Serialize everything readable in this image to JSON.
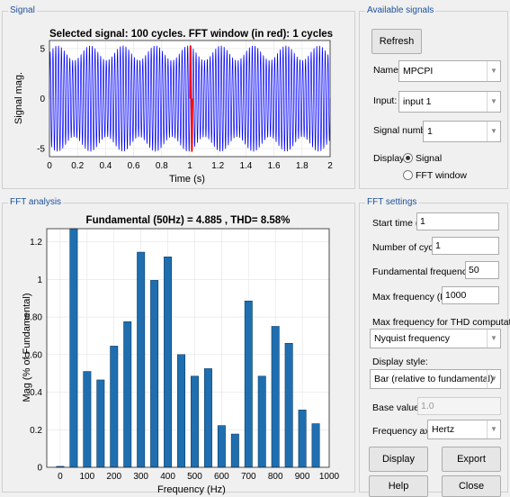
{
  "signal_panel": {
    "title": "Signal",
    "plot_title": "Selected signal: 100 cycles. FFT window (in red): 1 cycles",
    "ylabel": "Signal mag.",
    "xlabel": "Time (s)",
    "colors": {
      "signal": "#0000ff",
      "window": "#ff0000"
    }
  },
  "available_signals": {
    "title": "Available signals",
    "refresh_label": "Refresh",
    "name_label": "Name:",
    "name_value": "MPCPI",
    "input_label": "Input:",
    "input_value": "input 1",
    "signal_number_label": "Signal number:",
    "signal_number_value": "1",
    "display_label": "Display:",
    "display_signal_label": "Signal",
    "display_fft_label": "FFT window"
  },
  "fft_panel": {
    "title": "FFT analysis",
    "plot_title": "Fundamental (50Hz) = 4.885 , THD= 8.58%",
    "ylabel": "Mag (% of Fundamental)",
    "xlabel": "Frequency (Hz)",
    "bar_color": "#1f6fb0"
  },
  "fft_settings": {
    "title": "FFT settings",
    "start_time_label": "Start time (s):",
    "start_time_value": "1",
    "cycles_label": "Number of cycles:",
    "cycles_value": "1",
    "fund_freq_label": "Fundamental frequency (Hz):",
    "fund_freq_value": "50",
    "max_freq_label": "Max frequency (Hz):",
    "max_freq_value": "1000",
    "thd_label": "Max frequency for THD computation:",
    "thd_value": "Nyquist frequency",
    "display_style_label": "Display style:",
    "display_style_value": "Bar (relative to fundamental)",
    "base_value_label": "Base value:",
    "base_value_value": "1.0",
    "freq_axis_label": "Frequency axis:",
    "freq_axis_value": "Hertz",
    "display_btn": "Display",
    "export_btn": "Export",
    "help_btn": "Help",
    "close_btn": "Close"
  },
  "chart_data": [
    {
      "type": "line",
      "x_ticks": [
        0,
        0.2,
        0.4,
        0.6,
        0.8,
        1,
        1.2,
        1.4,
        1.6,
        1.8,
        2
      ],
      "y_ticks": [
        -5,
        0,
        5
      ],
      "xlim": [
        0,
        2
      ],
      "ylim": [
        -5.8,
        5.8
      ],
      "grid": true,
      "series": [
        {
          "x_range": [
            0,
            2
          ],
          "envelope_max": 5.3,
          "envelope_min": -5.3
        },
        {
          "x_range": [
            1.0,
            1.02
          ],
          "envelope_max": 5.3,
          "envelope_min": -5.3
        }
      ]
    },
    {
      "type": "bar",
      "x": [
        0,
        50,
        100,
        150,
        200,
        250,
        300,
        350,
        400,
        450,
        500,
        550,
        600,
        650,
        700,
        750,
        800,
        850,
        900,
        950
      ],
      "values": [
        0.005,
        1.27,
        0.51,
        0.465,
        0.645,
        0.775,
        1.145,
        0.995,
        1.12,
        0.6,
        0.485,
        0.525,
        0.222,
        0.177,
        0.885,
        0.485,
        0.75,
        0.66,
        0.305,
        0.232
      ],
      "x_ticks": [
        0,
        100,
        200,
        300,
        400,
        500,
        600,
        700,
        800,
        900,
        1000
      ],
      "y_ticks": [
        0,
        0.2,
        0.4,
        0.6,
        0.8,
        1,
        1.2
      ],
      "y_tick_labels": [
        "0",
        "0.2",
        "0.4",
        "0.60",
        "0.80",
        "1",
        "1.2"
      ],
      "xlim": [
        -50,
        1000
      ],
      "ylim": [
        0,
        1.27
      ],
      "grid": true
    }
  ]
}
